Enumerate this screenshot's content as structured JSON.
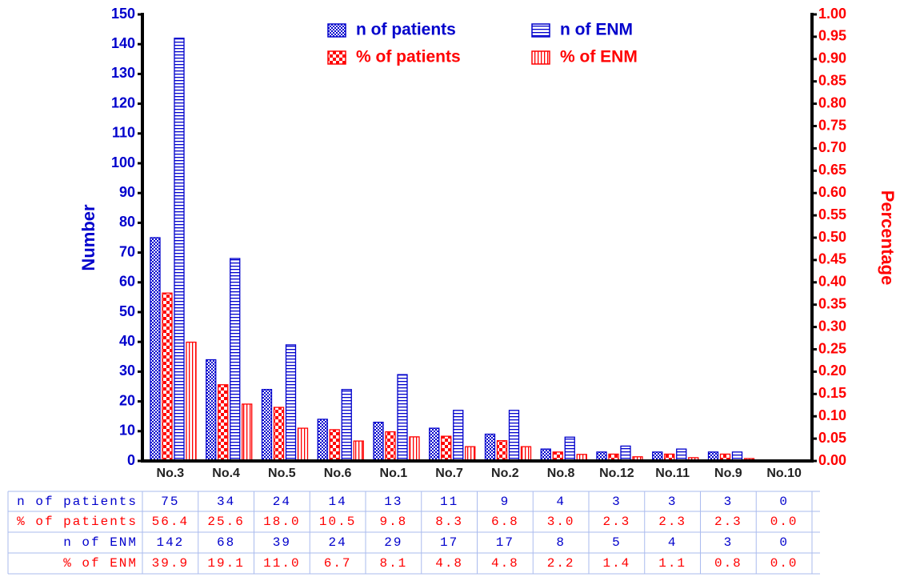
{
  "chart_data": {
    "type": "bar",
    "y_label": "Number",
    "y2_label": "Percentage",
    "categories": [
      "No.3",
      "No.4",
      "No.5",
      "No.6",
      "No.1",
      "No.7",
      "No.2",
      "No.8",
      "No.12",
      "No.11",
      "No.9",
      "No.10"
    ],
    "series": [
      {
        "name": "n of patients",
        "color": "#0000cc",
        "pattern": "checker",
        "values": [
          75,
          34,
          24,
          14,
          13,
          11,
          9,
          4,
          3,
          3,
          3,
          0
        ]
      },
      {
        "name": "% of patients",
        "color": "#ff0000",
        "pattern": "checker-large",
        "values": [
          56.4,
          25.6,
          18.0,
          10.5,
          9.8,
          8.3,
          6.8,
          3.0,
          2.3,
          2.3,
          2.3,
          0.0
        ],
        "value_labels": [
          "56.4",
          "25.6",
          "18.0",
          "10.5",
          "9.8",
          "8.3",
          "6.8",
          "3.0",
          "2.3",
          "2.3",
          "2.3",
          "0.0"
        ]
      },
      {
        "name": "n of ENM",
        "color": "#0000cc",
        "pattern": "hlines",
        "values": [
          142,
          68,
          39,
          24,
          29,
          17,
          17,
          8,
          5,
          4,
          3,
          0
        ]
      },
      {
        "name": "% of ENM",
        "color": "#ff0000",
        "pattern": "vlines",
        "values": [
          39.9,
          19.1,
          11.0,
          6.7,
          8.1,
          4.8,
          4.8,
          2.2,
          1.4,
          1.1,
          0.8,
          0.0
        ],
        "value_labels": [
          "39.9",
          "19.1",
          "11.0",
          "6.7",
          "8.1",
          "4.8",
          "4.8",
          "2.2",
          "1.4",
          "1.1",
          "0.8",
          "0.0"
        ]
      }
    ],
    "ylim": [
      0,
      150
    ],
    "yticks": [
      0,
      10,
      20,
      30,
      40,
      50,
      60,
      70,
      80,
      90,
      100,
      110,
      120,
      130,
      140,
      150
    ],
    "y2lim": [
      0,
      1
    ],
    "y2ticks": [
      {
        "value": 0,
        "label": "0.00"
      },
      {
        "value": 0.05,
        "label": "0.05"
      },
      {
        "value": 0.1,
        "label": "0.10"
      },
      {
        "value": 0.15,
        "label": "0.15"
      },
      {
        "value": 0.2,
        "label": "0.20"
      },
      {
        "value": 0.25,
        "label": "0.25"
      },
      {
        "value": 0.3,
        "label": "0.30"
      },
      {
        "value": 0.35,
        "label": "0.35"
      },
      {
        "value": 0.4,
        "label": "0.40"
      },
      {
        "value": 0.45,
        "label": "0.45"
      },
      {
        "value": 0.5,
        "label": "0.50"
      },
      {
        "value": 0.55,
        "label": "0.55"
      },
      {
        "value": 0.6,
        "label": "0.60"
      },
      {
        "value": 0.65,
        "label": "0.65"
      },
      {
        "value": 0.7,
        "label": "0.70"
      },
      {
        "value": 0.75,
        "label": "0.75"
      },
      {
        "value": 0.8,
        "label": "0.80"
      },
      {
        "value": 0.85,
        "label": "0.85"
      },
      {
        "value": 0.9,
        "label": "0.90"
      },
      {
        "value": 0.95,
        "label": "0.95"
      },
      {
        "value": 1,
        "label": "1.00"
      }
    ],
    "y_color": "#0000cc",
    "y2_color": "#ff0000"
  }
}
